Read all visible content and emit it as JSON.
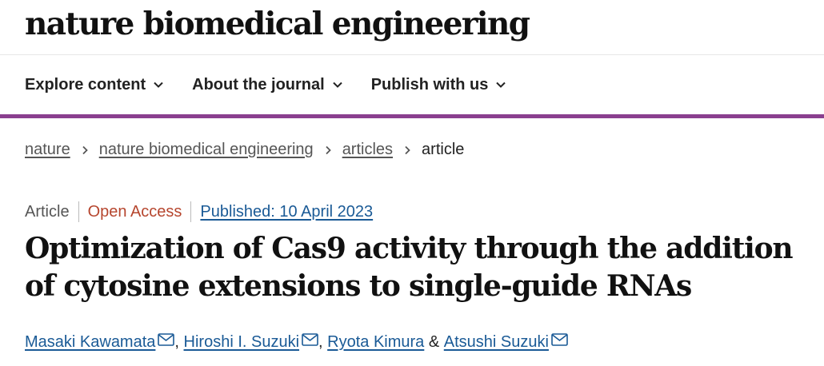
{
  "site": {
    "logo_text": "nature biomedical engineering"
  },
  "nav": {
    "items": [
      {
        "label": "Explore content"
      },
      {
        "label": "About the journal"
      },
      {
        "label": "Publish with us"
      }
    ]
  },
  "breadcrumb": {
    "items": [
      "nature",
      "nature biomedical engineering",
      "articles",
      "article"
    ]
  },
  "article": {
    "type": "Article",
    "access": "Open Access",
    "published": "Published: 10 April 2023",
    "title": "Optimization of Cas9 activity through the addition of cytosine extensions to single-guide RNAs",
    "authors": [
      "Masaki Kawamata",
      "Hiroshi I. Suzuki",
      "Ryota Kimura",
      "Atsushi Suzuki"
    ],
    "author_separators": [
      ",",
      ",",
      "&"
    ]
  },
  "colors": {
    "accent_purple": "#8a3f8f",
    "open_access": "#b6462e",
    "link_blue": "#1a5a96"
  },
  "icons": {
    "nav_chevron": "chevron-down-icon",
    "breadcrumb_sep": "chevron-right-icon",
    "author_mail": "envelope-icon"
  }
}
